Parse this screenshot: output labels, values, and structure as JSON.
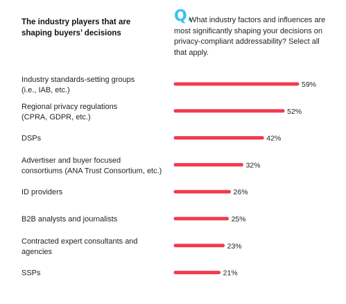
{
  "header": {
    "title": "The industry players that are shaping buyers’ decisions",
    "q_mark": "Q.",
    "question": "What industry factors and influences are most significantly shaping your decisions on privacy-compliant addressability? Select all that apply."
  },
  "colors": {
    "bar": "#f23a4f",
    "accent": "#38c1f3"
  },
  "chart_data": {
    "type": "bar",
    "orientation": "horizontal",
    "categories": [
      [
        "Industry standards-setting groups",
        "(i.e., IAB, etc.)"
      ],
      [
        "Regional privacy regulations",
        "(CPRA, GDPR, etc.)"
      ],
      [
        "DSPs"
      ],
      [
        "Advertiser and buyer focused",
        "consortiums (ANA Trust Consortium, etc.)"
      ],
      [
        "ID providers"
      ],
      [
        "B2B analysts and journalists"
      ],
      [
        "Contracted expert consultants and",
        "agencies"
      ],
      [
        "SSPs"
      ]
    ],
    "values": [
      59,
      52,
      42,
      32,
      26,
      25,
      23,
      21
    ],
    "value_labels": [
      "59%",
      "52%",
      "42%",
      "32%",
      "26%",
      "25%",
      "23%",
      "21%"
    ],
    "unit": "%",
    "xlim": [
      0,
      59
    ]
  }
}
